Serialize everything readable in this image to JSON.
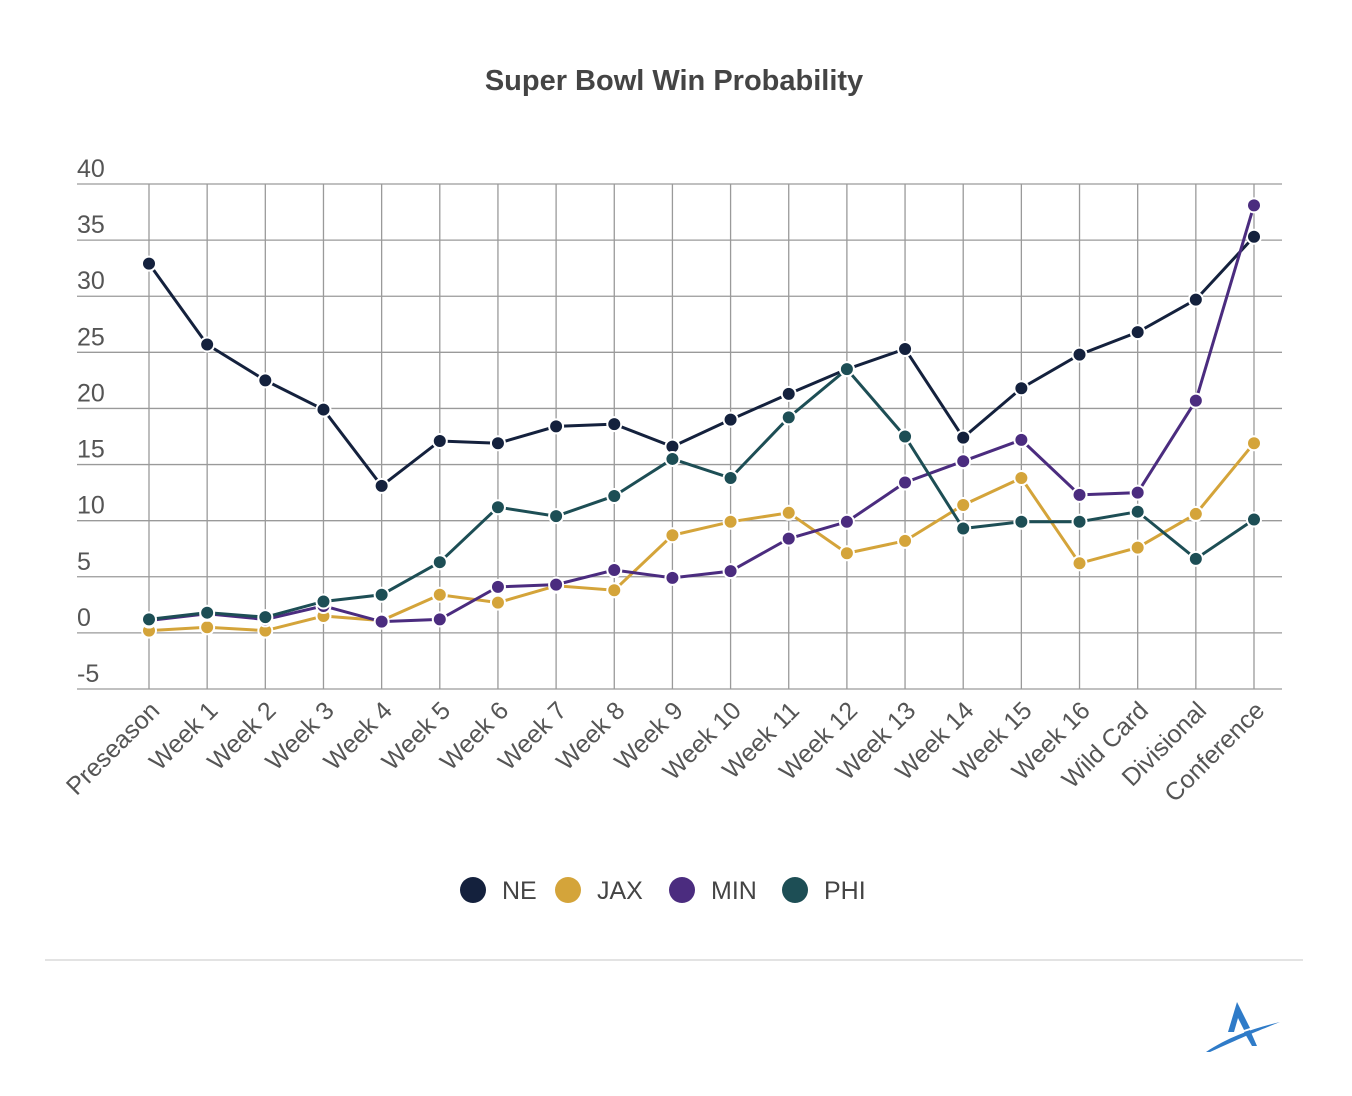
{
  "chart_data": {
    "type": "line",
    "title": "Super Bowl Win Probability",
    "xlabel": "",
    "ylabel": "",
    "ylim": [
      -5,
      40
    ],
    "yticks": [
      -5,
      0,
      5,
      10,
      15,
      20,
      25,
      30,
      35,
      40
    ],
    "grid": true,
    "legend_position": "bottom-center",
    "categories": [
      "Preseason",
      "Week 1",
      "Week 2",
      "Week 3",
      "Week 4",
      "Week 5",
      "Week 6",
      "Week 7",
      "Week 8",
      "Week 9",
      "Week 10",
      "Week 11",
      "Week 12",
      "Week 13",
      "Week 14",
      "Week 15",
      "Week 16",
      "Wild Card",
      "Divisional",
      "Conference"
    ],
    "series": [
      {
        "name": "NE",
        "color": "#14213d",
        "values": [
          32.9,
          25.7,
          22.5,
          19.9,
          13.1,
          17.1,
          16.9,
          18.4,
          18.6,
          16.6,
          19.0,
          21.3,
          23.5,
          25.3,
          17.4,
          21.8,
          24.8,
          26.8,
          29.7,
          35.3
        ]
      },
      {
        "name": "JAX",
        "color": "#d4a43a",
        "values": [
          0.2,
          0.5,
          0.2,
          1.5,
          1.1,
          3.4,
          2.7,
          4.2,
          3.8,
          8.7,
          9.9,
          10.7,
          7.1,
          8.2,
          11.4,
          13.8,
          6.2,
          7.6,
          10.6,
          16.9
        ]
      },
      {
        "name": "MIN",
        "color": "#4b2c7f",
        "values": [
          1.1,
          1.7,
          1.2,
          2.4,
          1.0,
          1.2,
          4.1,
          4.3,
          5.6,
          4.9,
          5.5,
          8.4,
          9.9,
          13.4,
          15.3,
          17.2,
          12.3,
          12.5,
          20.7,
          38.1
        ]
      },
      {
        "name": "PHI",
        "color": "#1d4e55",
        "values": [
          1.2,
          1.8,
          1.4,
          2.8,
          3.4,
          6.3,
          11.2,
          10.4,
          12.2,
          15.5,
          13.8,
          19.2,
          23.5,
          17.5,
          9.3,
          9.9,
          9.9,
          10.8,
          6.6,
          10.1
        ]
      }
    ]
  }
}
